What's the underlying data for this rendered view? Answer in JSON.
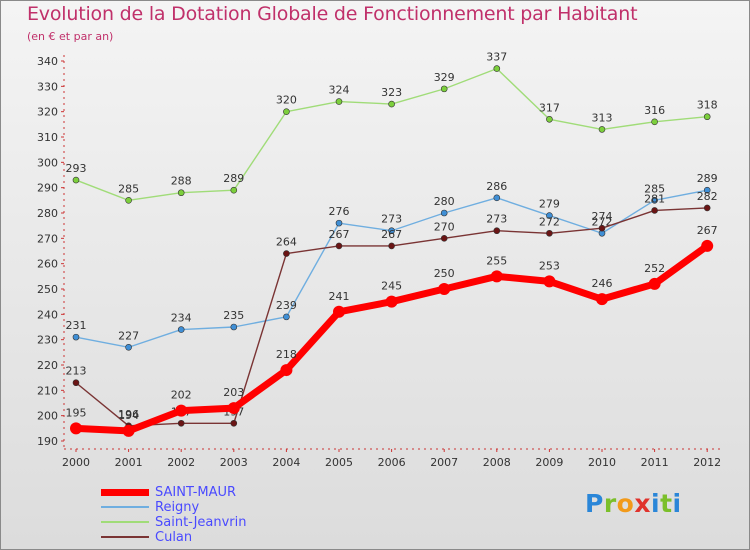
{
  "title": "Evolution de la Dotation Globale de Fonctionnement par Habitant",
  "subtitle": "(en € et par an)",
  "brand": "Proxiti",
  "chart_data": {
    "type": "line",
    "x": [
      "2000",
      "2001",
      "2002",
      "2003",
      "2004",
      "2005",
      "2006",
      "2007",
      "2008",
      "2009",
      "2010",
      "2011",
      "2012"
    ],
    "ylim": [
      190,
      340
    ],
    "yticks": [
      190,
      200,
      210,
      220,
      230,
      240,
      250,
      260,
      270,
      280,
      290,
      300,
      310,
      320,
      330,
      340
    ],
    "grid": false,
    "legend_position": "bottom-left",
    "series": [
      {
        "name": "Saint-Jeanvrin",
        "color": "#7ccf3c",
        "line_color": "#a0dc78",
        "width": 1.4,
        "marker_r": 3,
        "label_dy": -8,
        "values": [
          293,
          285,
          288,
          289,
          320,
          324,
          323,
          329,
          337,
          317,
          313,
          316,
          318
        ]
      },
      {
        "name": "Reigny",
        "color": "#3f8fd6",
        "line_color": "#6faee0",
        "width": 1.4,
        "marker_r": 3,
        "label_dy": -8,
        "values": [
          231,
          227,
          234,
          235,
          239,
          276,
          273,
          280,
          286,
          279,
          272,
          285,
          289
        ]
      },
      {
        "name": "Culan",
        "color": "#6b1515",
        "line_color": "#7a3434",
        "width": 1.4,
        "marker_r": 3,
        "label_dy": -8,
        "values": [
          213,
          196,
          197,
          197,
          264,
          267,
          267,
          270,
          273,
          272,
          274,
          281,
          282
        ]
      },
      {
        "name": "SAINT-MAUR",
        "color": "#ff0000",
        "line_color": "#ff0000",
        "width": 7,
        "marker_r": 6,
        "label_dy": -12,
        "values": [
          195,
          194,
          202,
          203,
          218,
          241,
          245,
          250,
          255,
          253,
          246,
          252,
          267
        ]
      }
    ],
    "legend_order": [
      "SAINT-MAUR",
      "Reigny",
      "Saint-Jeanvrin",
      "Culan"
    ]
  }
}
